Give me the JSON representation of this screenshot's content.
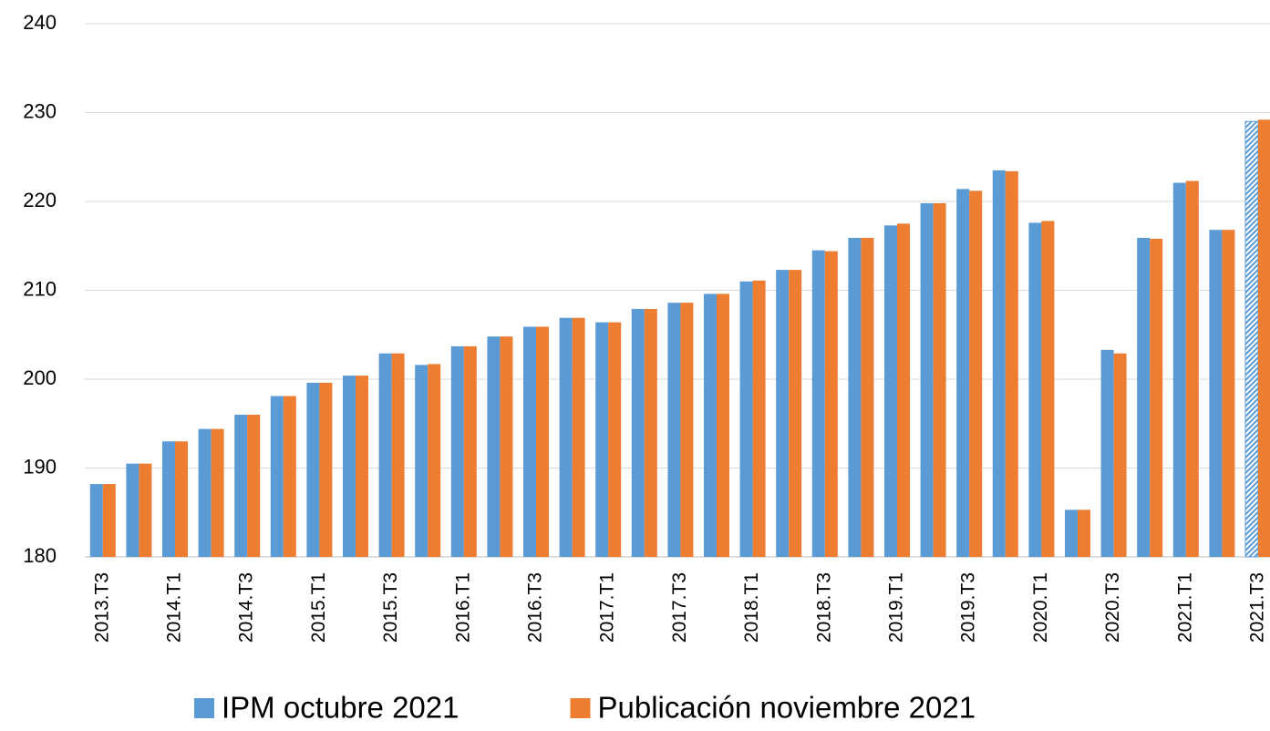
{
  "chart_data": {
    "type": "bar",
    "categories": [
      "2013.T3",
      null,
      "2014.T1",
      null,
      "2014.T3",
      null,
      "2015.T1",
      null,
      "2015.T3",
      null,
      "2016.T1",
      null,
      "2016.T3",
      null,
      "2017.T1",
      null,
      "2017.T3",
      null,
      "2018.T1",
      null,
      "2018.T3",
      null,
      "2019.T1",
      null,
      "2019.T3",
      null,
      "2020.T1",
      null,
      "2020.T3",
      null,
      "2021.T1",
      null,
      "2021.T3"
    ],
    "series": [
      {
        "name": "IPM octubre 2021",
        "color": "#5b9bd5",
        "hatch_last": true,
        "values": [
          188.2,
          190.5,
          193.0,
          194.4,
          196.0,
          198.1,
          199.6,
          200.4,
          202.9,
          201.6,
          203.7,
          204.8,
          205.9,
          206.9,
          206.4,
          207.9,
          208.6,
          209.6,
          211.0,
          212.3,
          214.5,
          215.9,
          217.3,
          219.8,
          221.4,
          223.5,
          217.6,
          185.3,
          203.3,
          215.9,
          222.1,
          216.8,
          229.0
        ]
      },
      {
        "name": "Publicación noviembre 2021",
        "color": "#ed7d31",
        "values": [
          188.2,
          190.5,
          193.0,
          194.4,
          196.0,
          198.1,
          199.6,
          200.4,
          202.9,
          201.7,
          203.7,
          204.8,
          205.9,
          206.9,
          206.4,
          207.9,
          208.6,
          209.6,
          211.1,
          212.3,
          214.4,
          215.9,
          217.5,
          219.8,
          221.2,
          223.4,
          217.8,
          185.3,
          202.9,
          215.8,
          222.3,
          216.8,
          229.2
        ]
      }
    ],
    "ylim": [
      180,
      240
    ],
    "yticks": [
      180,
      190,
      200,
      210,
      220,
      230,
      240
    ],
    "grid": true,
    "legend": "bottom"
  }
}
